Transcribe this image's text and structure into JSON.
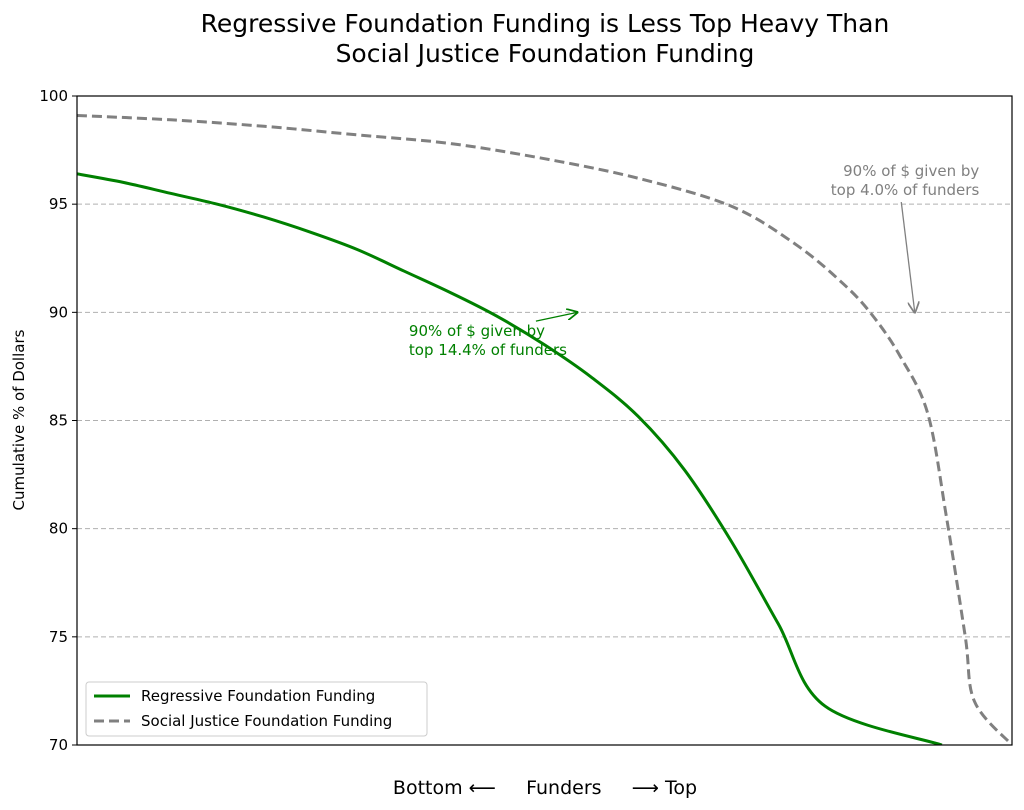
{
  "chart_data": {
    "type": "line",
    "title_lines": [
      "Regressive Foundation Funding is Less Top Heavy Than",
      "Social Justice Foundation Funding"
    ],
    "xlabel": "Bottom ⟵     Funders     ⟶ Top",
    "ylabel": "Cumulative % of Dollars",
    "xlim": [
      0,
      100
    ],
    "ylim": [
      70,
      100
    ],
    "yticks": [
      70,
      75,
      80,
      85,
      90,
      95,
      100
    ],
    "grid": "horizontal dashed",
    "legend_position": "lower-left",
    "x_axis_tick_labels_shown": false,
    "series": [
      {
        "name": "Regressive Foundation Funding",
        "color": "#008000",
        "style": "solid",
        "points": [
          [
            0,
            96.4
          ],
          [
            5,
            96.0
          ],
          [
            10,
            95.5
          ],
          [
            15,
            95.0
          ],
          [
            20,
            94.4
          ],
          [
            25,
            93.7
          ],
          [
            30,
            92.9
          ],
          [
            35,
            91.9
          ],
          [
            40,
            90.9
          ],
          [
            45,
            89.8
          ],
          [
            50,
            88.5
          ],
          [
            55,
            87.0
          ],
          [
            60,
            85.2
          ],
          [
            65,
            82.7
          ],
          [
            70,
            79.4
          ],
          [
            75,
            75.6
          ],
          [
            80,
            71.8
          ],
          [
            92.5,
            70.0
          ]
        ]
      },
      {
        "name": "Social Justice Foundation Funding",
        "color": "#808080",
        "style": "dashed",
        "points": [
          [
            0,
            99.1
          ],
          [
            10,
            98.9
          ],
          [
            20,
            98.6
          ],
          [
            30,
            98.2
          ],
          [
            40,
            97.8
          ],
          [
            50,
            97.1
          ],
          [
            60,
            96.2
          ],
          [
            70,
            94.9
          ],
          [
            77,
            93.1
          ],
          [
            82,
            91.3
          ],
          [
            85,
            89.9
          ],
          [
            88,
            88.0
          ],
          [
            91,
            85.3
          ],
          [
            93,
            80.5
          ],
          [
            95,
            75.0
          ],
          [
            96,
            72.0
          ],
          [
            100,
            70.0
          ]
        ]
      }
    ],
    "annotations": [
      {
        "lines": [
          "90% of $ given by",
          "top 14.4% of funders"
        ],
        "color": "#008000",
        "arrow_to": [
          53.5,
          90.0
        ],
        "text_at": [
          35.5,
          88.9
        ],
        "align": "start"
      },
      {
        "lines": [
          "90% of $ given by",
          "top 4.0% of funders"
        ],
        "color": "#808080",
        "arrow_to": [
          89.6,
          90.0
        ],
        "text_at": [
          96.5,
          96.3
        ],
        "align": "end"
      }
    ]
  }
}
